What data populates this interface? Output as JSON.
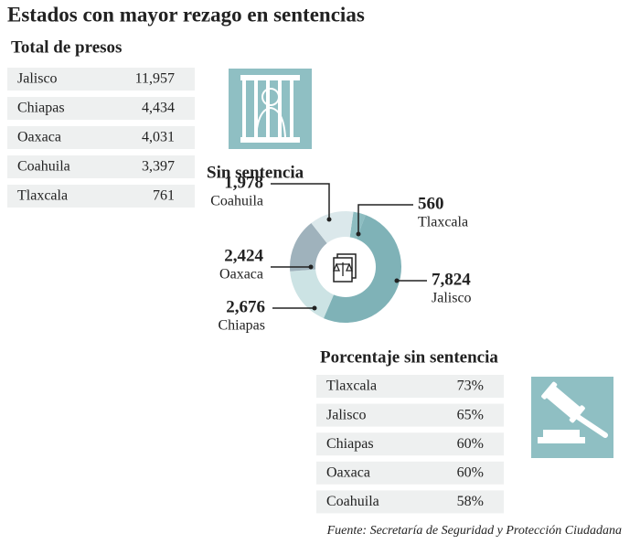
{
  "title": "Estados con mayor rezago en sentencias",
  "total_presos": {
    "heading": "Total de presos",
    "rows": [
      [
        "Jalisco",
        "11,957"
      ],
      [
        "Chiapas",
        "4,434"
      ],
      [
        "Oaxaca",
        "4,031"
      ],
      [
        "Coahuila",
        "3,397"
      ],
      [
        "Tlaxcala",
        "761"
      ]
    ]
  },
  "chart_data": {
    "type": "pie",
    "title": "Sin sentencia",
    "categories": [
      "Tlaxcala",
      "Jalisco",
      "Chiapas",
      "Oaxaca",
      "Coahuila"
    ],
    "values": [
      560,
      7824,
      2676,
      2424,
      1978
    ],
    "value_labels": [
      "560",
      "7,824",
      "2,676",
      "2,424",
      "1,978"
    ],
    "colors": [
      "#8dbdc1",
      "#7fb2b7",
      "#cce3e4",
      "#9fb2bc",
      "#dbe8eb"
    ]
  },
  "porcentaje": {
    "heading": "Porcentaje sin sentencia",
    "rows": [
      [
        "Tlaxcala",
        "73%"
      ],
      [
        "Jalisco",
        "65%"
      ],
      [
        "Chiapas",
        "60%"
      ],
      [
        "Oaxaca",
        "60%"
      ],
      [
        "Coahuila",
        "58%"
      ]
    ]
  },
  "source": "Fuente: Secretaría de Seguridad y Protección Ciudadana"
}
